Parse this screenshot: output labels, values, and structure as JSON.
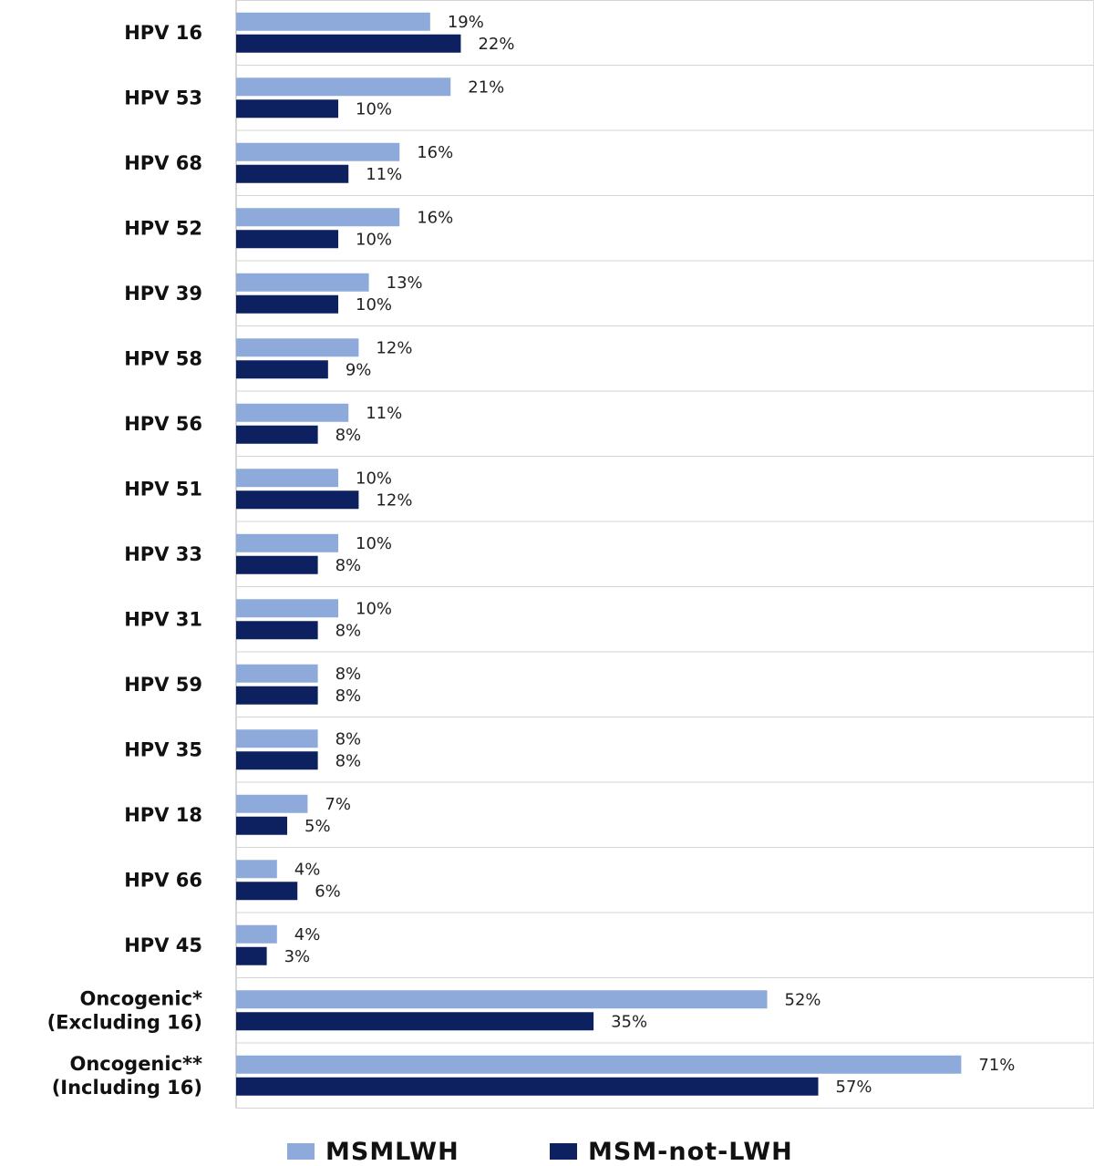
{
  "chart_data": {
    "type": "bar",
    "orientation": "horizontal",
    "categories": [
      [
        "HPV 16"
      ],
      [
        "HPV 53"
      ],
      [
        "HPV 68"
      ],
      [
        "HPV 52"
      ],
      [
        "HPV 39"
      ],
      [
        "HPV 58"
      ],
      [
        "HPV 56"
      ],
      [
        "HPV 51"
      ],
      [
        "HPV 33"
      ],
      [
        "HPV 31"
      ],
      [
        "HPV 59"
      ],
      [
        "HPV 35"
      ],
      [
        "HPV 18"
      ],
      [
        "HPV 66"
      ],
      [
        "HPV 45"
      ],
      [
        "Oncogenic*",
        "(Excluding 16)"
      ],
      [
        "Oncogenic**",
        "(Including 16)"
      ]
    ],
    "series": [
      {
        "name": "MSMLWH",
        "color": "#8eaadb",
        "values": [
          19,
          21,
          16,
          16,
          13,
          12,
          11,
          10,
          10,
          10,
          8,
          8,
          7,
          4,
          4,
          52,
          71
        ],
        "labels": [
          "19%",
          "21%",
          "16%",
          "16%",
          "13%",
          "12%",
          "11%",
          "10%",
          "10%",
          "10%",
          "8%",
          "8%",
          "7%",
          "4%",
          "4%",
          "52%",
          "71%"
        ]
      },
      {
        "name": "MSM-not-LWH",
        "color": "#0d2060",
        "values": [
          22,
          10,
          11,
          10,
          10,
          9,
          8,
          12,
          8,
          8,
          8,
          8,
          5,
          6,
          3,
          35,
          57
        ],
        "labels": [
          "22%",
          "10%",
          "11%",
          "10%",
          "10%",
          "9%",
          "8%",
          "12%",
          "8%",
          "8%",
          "8%",
          "8%",
          "5%",
          "6%",
          "3%",
          "35%",
          "57%"
        ]
      }
    ],
    "unit": "%",
    "xlim": [
      0,
      84
    ],
    "grid": "horizontal separators between categories",
    "legend": "bottom-center"
  }
}
